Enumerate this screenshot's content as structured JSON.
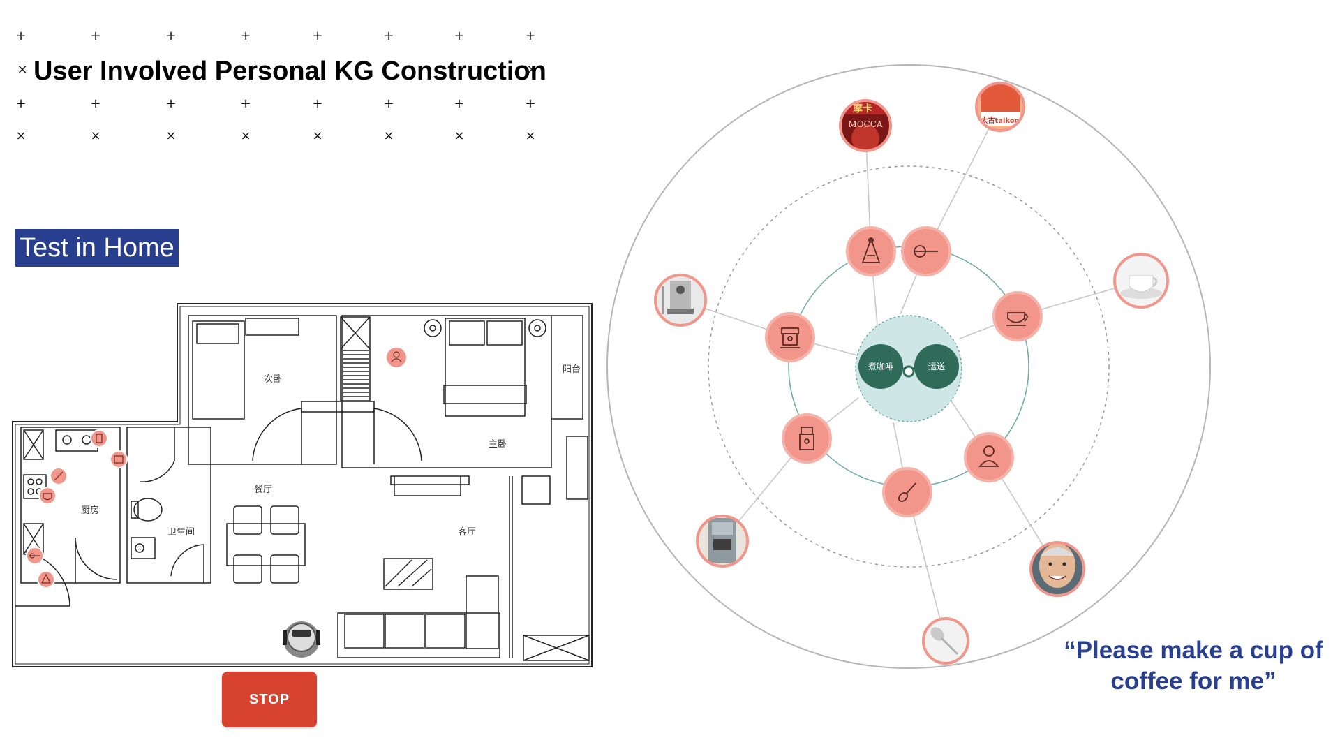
{
  "title": "User Involved Personal KG Construction",
  "decor": {
    "plus": "+",
    "cross": "×"
  },
  "badge": "Test in Home",
  "stop_label": "STOP",
  "quote": "“Please make a cup of coffee for me”",
  "rooms": {
    "second_bedroom": "次卧",
    "master_bedroom": "主卧",
    "balcony": "阳台",
    "dining": "餐厅",
    "kitchen": "厨房",
    "bathroom": "卫生间",
    "living": "客厅"
  },
  "graph": {
    "center_nodes": [
      "煮咖啡",
      "运送"
    ],
    "inner_icons": [
      "grinder-icon",
      "scoop-icon",
      "cup-icon",
      "person-icon",
      "spoon-icon",
      "water-dispenser-icon",
      "coffee-machine-icon"
    ],
    "outer_photos": [
      "mocca-coffee-photo",
      "taikoo-sugar-photo",
      "white-cup-photo",
      "elderly-man-photo",
      "spoon-photo",
      "water-dispenser-photo",
      "espresso-machine-photo"
    ],
    "photo_text": {
      "mocca": "摩卡",
      "mocca_brand": "MOCCA",
      "taikoo": "太古taikoo"
    }
  },
  "colors": {
    "accent": "#f2958a",
    "node_ring": "#f5b2a8",
    "center_fill": "#2f6b58",
    "center_bg": "#cfe6e6",
    "badge": "#283e8e",
    "stop": "#d8432f",
    "quote": "#283e8e"
  }
}
